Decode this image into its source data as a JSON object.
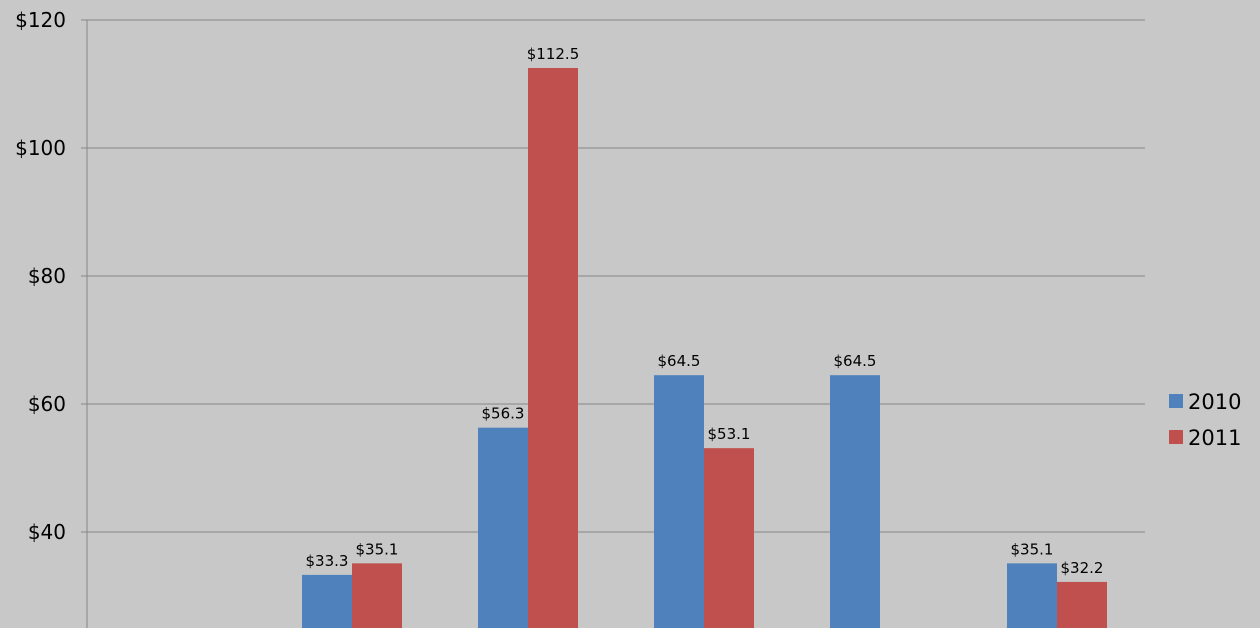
{
  "chart_data": {
    "type": "bar",
    "categories": [
      "",
      "",
      "",
      "",
      "",
      ""
    ],
    "series": [
      {
        "name": "2010",
        "color": "#4f81bd",
        "values": [
          null,
          33.3,
          56.3,
          64.5,
          64.5,
          35.1
        ]
      },
      {
        "name": "2011",
        "color": "#c0504d",
        "values": [
          null,
          35.1,
          112.5,
          53.1,
          null,
          32.2
        ]
      }
    ],
    "data_labels": [
      [
        null,
        "$33.3",
        "$56.3",
        "$64.5",
        "$64.5",
        "$35.1"
      ],
      [
        null,
        "$35.1",
        "$112.5",
        "$53.1",
        null,
        "$32.2"
      ]
    ],
    "y_ticks": [
      40,
      60,
      80,
      100,
      120
    ],
    "y_tick_labels": [
      "$40",
      "$60",
      "$80",
      "$100",
      "$120"
    ],
    "ylim": [
      20,
      120
    ],
    "grid": true,
    "legend_position": "right",
    "title": "",
    "xlabel": "",
    "ylabel": ""
  }
}
